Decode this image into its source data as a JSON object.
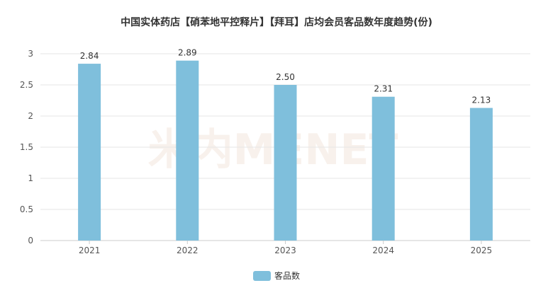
{
  "chart_data": {
    "type": "bar",
    "title": "中国实体药店【硝苯地平控释片】【拜耳】店均会员客品数年度趋势(份)",
    "categories": [
      "2021",
      "2022",
      "2023",
      "2024",
      "2025"
    ],
    "series": [
      {
        "name": "客品数",
        "values": [
          2.84,
          2.89,
          2.5,
          2.31,
          2.13
        ],
        "labels": [
          "2.84",
          "2.89",
          "2.50",
          "2.31",
          "2.13"
        ],
        "color": "#7fbfdc"
      }
    ],
    "xlabel": "",
    "ylabel": "",
    "ylim": [
      0,
      3
    ],
    "yticks": [
      "0",
      "0.5",
      "1",
      "1.5",
      "2",
      "2.5",
      "3"
    ],
    "yticks_values": [
      0,
      0.5,
      1,
      1.5,
      2,
      2.5,
      3
    ],
    "grid": true,
    "legend_position": "bottom-center",
    "watermark": "米内MENET"
  }
}
